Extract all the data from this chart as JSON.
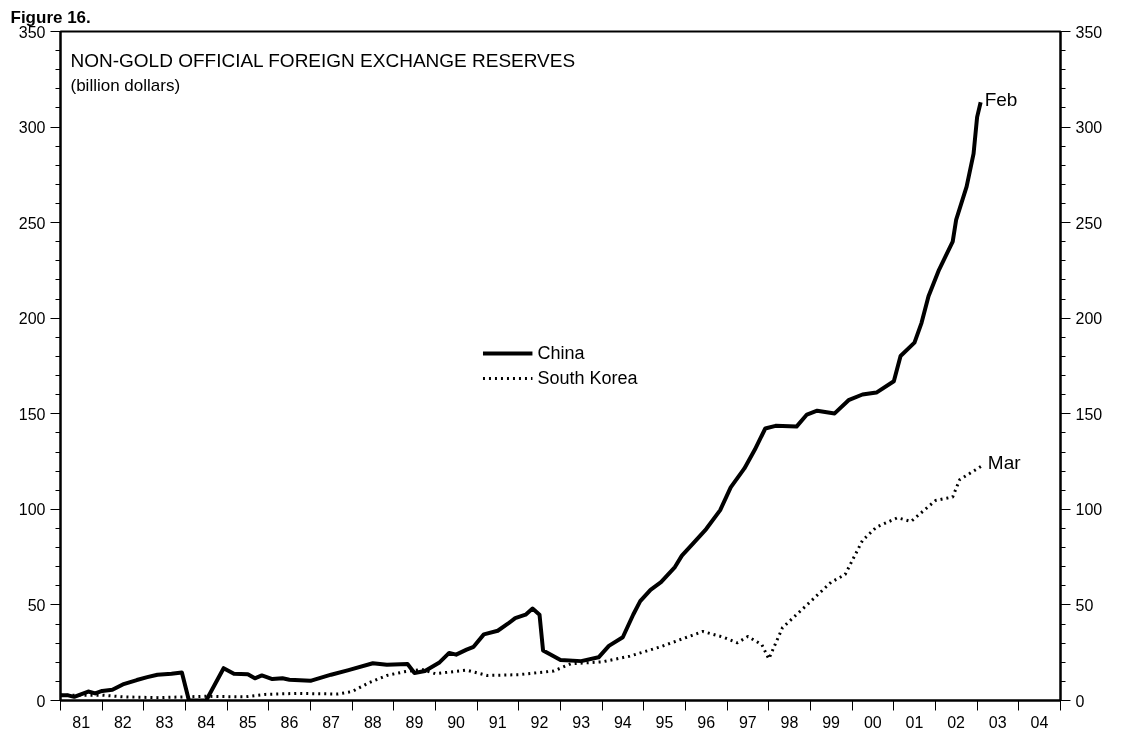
{
  "chart_data": {
    "type": "line",
    "title": "NON-GOLD OFFICIAL FOREIGN EXCHANGE RESERVES",
    "subtitle": "(billion dollars)",
    "annotations": [
      "Figure 16.",
      {
        "text": "Feb",
        "x": "2003-02",
        "y": 313
      },
      {
        "text": "Mar",
        "x": "2003-03",
        "y": 123.4
      }
    ],
    "xlim": [
      "1981-01",
      "2005-01"
    ],
    "xticks": [
      {
        "value": "1981-01",
        "label": null
      },
      {
        "value": "1981-07",
        "label": "81"
      },
      {
        "value": "1982-01",
        "label": null
      },
      {
        "value": "1982-07",
        "label": "82"
      },
      {
        "value": "1983-01",
        "label": null
      },
      {
        "value": "1983-07",
        "label": "83"
      },
      {
        "value": "1984-01",
        "label": null
      },
      {
        "value": "1984-07",
        "label": "84"
      },
      {
        "value": "1985-01",
        "label": null
      },
      {
        "value": "1985-07",
        "label": "85"
      },
      {
        "value": "1986-01",
        "label": null
      },
      {
        "value": "1986-07",
        "label": "86"
      },
      {
        "value": "1987-01",
        "label": null
      },
      {
        "value": "1987-07",
        "label": "87"
      },
      {
        "value": "1988-01",
        "label": null
      },
      {
        "value": "1988-07",
        "label": "88"
      },
      {
        "value": "1989-01",
        "label": null
      },
      {
        "value": "1989-07",
        "label": "89"
      },
      {
        "value": "1990-01",
        "label": null
      },
      {
        "value": "1990-07",
        "label": "90"
      },
      {
        "value": "1991-01",
        "label": null
      },
      {
        "value": "1991-07",
        "label": "91"
      },
      {
        "value": "1992-01",
        "label": null
      },
      {
        "value": "1992-07",
        "label": "92"
      },
      {
        "value": "1993-01",
        "label": null
      },
      {
        "value": "1993-07",
        "label": "93"
      },
      {
        "value": "1994-01",
        "label": null
      },
      {
        "value": "1994-07",
        "label": "94"
      },
      {
        "value": "1995-01",
        "label": null
      },
      {
        "value": "1995-07",
        "label": "95"
      },
      {
        "value": "1996-01",
        "label": null
      },
      {
        "value": "1996-07",
        "label": "96"
      },
      {
        "value": "1997-01",
        "label": null
      },
      {
        "value": "1997-07",
        "label": "97"
      },
      {
        "value": "1998-01",
        "label": null
      },
      {
        "value": "1998-07",
        "label": "98"
      },
      {
        "value": "1999-01",
        "label": null
      },
      {
        "value": "1999-07",
        "label": "99"
      },
      {
        "value": "2000-01",
        "label": null
      },
      {
        "value": "2000-07",
        "label": "00"
      },
      {
        "value": "2001-01",
        "label": null
      },
      {
        "value": "2001-07",
        "label": "01"
      },
      {
        "value": "2002-01",
        "label": null
      },
      {
        "value": "2002-07",
        "label": "02"
      },
      {
        "value": "2003-01",
        "label": null
      },
      {
        "value": "2003-07",
        "label": "03"
      },
      {
        "value": "2004-01",
        "label": null
      },
      {
        "value": "2004-07",
        "label": "04"
      },
      {
        "value": "2005-01",
        "label": null
      }
    ],
    "ylim": [
      0,
      350
    ],
    "yticks": [
      0,
      50,
      100,
      150,
      200,
      250,
      300,
      350
    ],
    "y2lim": [
      0,
      350
    ],
    "y2ticks": [
      0,
      50,
      100,
      150,
      200,
      250,
      300,
      350
    ],
    "grid": false,
    "legend": "center",
    "series": [
      {
        "name": "China",
        "color": "#000000",
        "line_style": "solid",
        "x": [
          "1981-01",
          "1981-03",
          "1981-05",
          "1981-09",
          "1981-11",
          "1982-01",
          "1982-04",
          "1982-07",
          "1982-11",
          "1983-02",
          "1983-05",
          "1983-09",
          "1983-12",
          "1984-02",
          "1984-07",
          "1984-12",
          "1985-03",
          "1985-07",
          "1985-09",
          "1985-11",
          "1986-02",
          "1986-05",
          "1986-07",
          "1987-01",
          "1987-07",
          "1987-12",
          "1988-07",
          "1988-11",
          "1989-05",
          "1989-07",
          "1989-10",
          "1990-02",
          "1990-05",
          "1990-07",
          "1990-10",
          "1990-12",
          "1991-03",
          "1991-07",
          "1991-10",
          "1991-12",
          "1992-03",
          "1992-05",
          "1992-07",
          "1992-08",
          "1992-10",
          "1993-01",
          "1993-07",
          "1993-12",
          "1994-03",
          "1994-07",
          "1994-10",
          "1994-12",
          "1995-03",
          "1995-06",
          "1995-10",
          "1995-12",
          "1996-03",
          "1996-07",
          "1996-11",
          "1997-02",
          "1997-06",
          "1997-09",
          "1997-12",
          "1998-03",
          "1998-09",
          "1998-12",
          "1999-03",
          "1999-08",
          "1999-12",
          "2000-04",
          "2000-08",
          "2001-01",
          "2001-03",
          "2001-07",
          "2001-09",
          "2001-11",
          "2002-02",
          "2002-06",
          "2002-07",
          "2002-10",
          "2002-12",
          "2003-01",
          "2003-02"
        ],
        "values": [
          2.8,
          2.8,
          1.9,
          4.7,
          3.7,
          5,
          5.6,
          8.4,
          10.7,
          12.2,
          13.5,
          14,
          14.6,
          0,
          0,
          16.9,
          14,
          13.7,
          11.6,
          13.1,
          11.2,
          11.6,
          10.9,
          10.3,
          13.5,
          15.9,
          19.5,
          18.7,
          19.1,
          14.4,
          15.4,
          19.7,
          24.9,
          24,
          26.6,
          28.1,
          34.6,
          36.5,
          40.3,
          43.1,
          44.9,
          48.1,
          44.9,
          26.2,
          24.2,
          21.2,
          20.6,
          22.6,
          28.6,
          33.1,
          45,
          52,
          57.9,
          61.9,
          69.8,
          75.8,
          81.7,
          89.7,
          99.6,
          111.5,
          121.4,
          131.3,
          142.3,
          143.7,
          143.3,
          149.6,
          151.6,
          150.2,
          157.1,
          160.1,
          161.1,
          167,
          180.2,
          187.2,
          197.6,
          211.5,
          225.3,
          240.1,
          251.4,
          268.8,
          286.1,
          305.2,
          313
        ]
      },
      {
        "name": "South Korea",
        "color": "#000000",
        "line_style": "dotted",
        "x": [
          "1981-01",
          "1982-01",
          "1982-07",
          "1983-05",
          "1984-07",
          "1985-06",
          "1985-12",
          "1986-09",
          "1987-09",
          "1988-01",
          "1988-06",
          "1988-11",
          "1989-04",
          "1989-09",
          "1990-01",
          "1990-10",
          "1991-04",
          "1992-01",
          "1992-11",
          "1993-04",
          "1994-01",
          "1994-09",
          "1995-06",
          "1996-03",
          "1996-06",
          "1996-12",
          "1997-04",
          "1997-07",
          "1997-11",
          "1998-01",
          "1998-05",
          "1998-12",
          "1999-07",
          "1999-11",
          "2000-04",
          "2000-08",
          "2001-02",
          "2001-06",
          "2002-01",
          "2002-06",
          "2002-08",
          "2003-03"
        ],
        "values": [
          2.8,
          2.8,
          1.9,
          1.5,
          2.2,
          1.9,
          3.2,
          3.7,
          3.4,
          4.7,
          9.4,
          13.1,
          15,
          16.3,
          14,
          15.9,
          13.1,
          13.5,
          15.4,
          19.2,
          20.2,
          23.2,
          28.2,
          34.1,
          36.1,
          33.1,
          30.2,
          33.5,
          29.2,
          21.8,
          38.1,
          50,
          61.9,
          65.9,
          83.7,
          90.7,
          95.6,
          93.7,
          104.6,
          106.5,
          115.5,
          123.4
        ]
      }
    ]
  }
}
